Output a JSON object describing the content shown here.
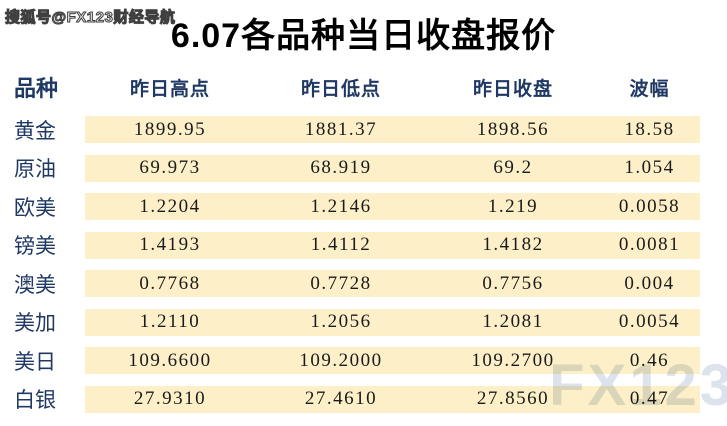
{
  "page": {
    "source_watermark": "搜狐号@FX123财经导航",
    "title": "6.07各品种当日收盘报价",
    "brand_watermark": "FX123"
  },
  "colors": {
    "header_text": "#1F3864",
    "label_text": "#1F3864",
    "row_band_bg": "#FDF0C8",
    "number_text": "#1A1A1A",
    "title_text": "#000000",
    "brand_watermark": "#DCE3EC"
  },
  "chart_data": {
    "type": "table",
    "title": "6.07各品种当日收盘报价",
    "columns": [
      "品种",
      "昨日高点",
      "昨日低点",
      "昨日收盘",
      "波幅"
    ],
    "rows": [
      {
        "label": "黄金",
        "values": [
          "1899.95",
          "1881.37",
          "1898.56",
          "18.58"
        ]
      },
      {
        "label": "原油",
        "values": [
          "69.973",
          "68.919",
          "69.2",
          "1.054"
        ]
      },
      {
        "label": "欧美",
        "values": [
          "1.2204",
          "1.2146",
          "1.219",
          "0.0058"
        ]
      },
      {
        "label": "镑美",
        "values": [
          "1.4193",
          "1.4112",
          "1.4182",
          "0.0081"
        ]
      },
      {
        "label": "澳美",
        "values": [
          "0.7768",
          "0.7728",
          "0.7756",
          "0.004"
        ]
      },
      {
        "label": "美加",
        "values": [
          "1.2110",
          "1.2056",
          "1.2081",
          "0.0054"
        ]
      },
      {
        "label": "美日",
        "values": [
          "109.6600",
          "109.2000",
          "109.2700",
          "0.46"
        ]
      },
      {
        "label": "白银",
        "values": [
          "27.9310",
          "27.4610",
          "27.8560",
          "0.47"
        ]
      }
    ]
  }
}
